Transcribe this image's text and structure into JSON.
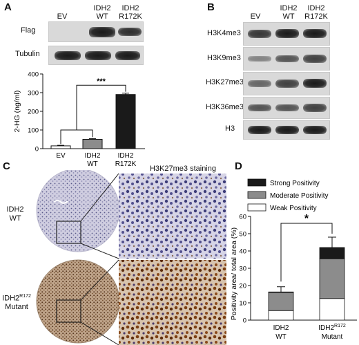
{
  "panel_a": {
    "label": "A",
    "lanes": [
      {
        "line1": "EV",
        "line2": ""
      },
      {
        "line1": "IDH2",
        "line2": "WT"
      },
      {
        "line1": "IDH2",
        "line2": "R172K"
      }
    ],
    "blots": [
      {
        "name": "Flag",
        "intensities": [
          0.0,
          1.0,
          0.75
        ]
      },
      {
        "name": "Tubulin",
        "intensities": [
          0.85,
          0.85,
          0.85
        ]
      }
    ]
  },
  "panel_b": {
    "label": "B",
    "lanes": [
      {
        "line1": "EV",
        "line2": ""
      },
      {
        "line1": "IDH2",
        "line2": "WT"
      },
      {
        "line1": "IDH2",
        "line2": "R172K"
      }
    ],
    "blots": [
      {
        "name": "H3K4me3",
        "intensities": [
          0.75,
          0.85,
          0.85
        ]
      },
      {
        "name": "H3K9me3",
        "intensities": [
          0.35,
          0.6,
          0.7
        ]
      },
      {
        "name": "H3K27me3",
        "intensities": [
          0.5,
          0.7,
          0.85
        ]
      },
      {
        "name": "H3K36me3",
        "intensities": [
          0.6,
          0.6,
          0.7
        ]
      },
      {
        "name": "H3",
        "intensities": [
          0.85,
          0.85,
          0.85
        ]
      }
    ]
  },
  "panel_c": {
    "label": "C",
    "staining_title": "H3K27me3 staining",
    "rows": [
      {
        "label_main": "IDH2",
        "label_sup": "",
        "label_line2": "WT"
      },
      {
        "label_main": "IDH2",
        "label_sup": "R172",
        "label_line2": "Mutant"
      }
    ]
  },
  "panel_d": {
    "label": "D",
    "significance": "*"
  },
  "chart_data": [
    {
      "type": "bar",
      "panel": "A",
      "categories": [
        "EV",
        "IDH2 WT",
        "IDH2 R172K"
      ],
      "values": [
        15,
        50,
        290
      ],
      "errors": [
        3,
        4,
        7
      ],
      "colors": [
        "#ffffff",
        "#8c8c8c",
        "#1a1a1a"
      ],
      "ylabel": "2-HG (ng/ml)",
      "ylim": [
        0,
        400
      ],
      "yticks": [
        0,
        100,
        200,
        300,
        400
      ],
      "significance": "***"
    },
    {
      "type": "bar",
      "panel": "D",
      "stacked": true,
      "categories": [
        {
          "main": "IDH2",
          "sup": "",
          "line2": "WT"
        },
        {
          "main": "IDH2",
          "sup": "R172",
          "line2": "Mutant"
        }
      ],
      "series": [
        {
          "name": "Weak Positivity",
          "color": "#ffffff",
          "values": [
            5.5,
            12.5
          ]
        },
        {
          "name": "Moderate Positivity",
          "color": "#8c8c8c",
          "values": [
            10.5,
            23
          ]
        },
        {
          "name": "Strong Positivity",
          "color": "#1a1a1a",
          "values": [
            0.3,
            6.5
          ]
        }
      ],
      "errors": [
        3,
        6
      ],
      "ylabel": "Positivity area/ total area (%)",
      "ylim": [
        0,
        60
      ],
      "yticks": [
        0,
        10,
        20,
        30,
        40,
        50,
        60
      ],
      "legend_position": "top"
    }
  ]
}
